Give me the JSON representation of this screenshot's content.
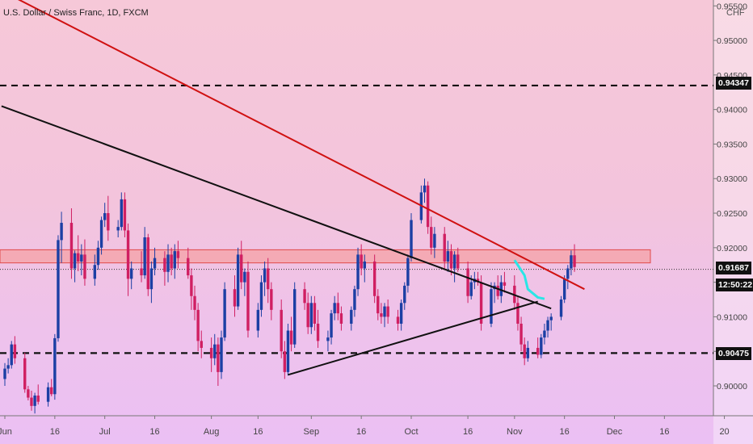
{
  "header": {
    "title": "U.S. Dollar / Swiss Franc, 1D, FXCM",
    "currency": "CHF"
  },
  "axis_tags": {
    "level_high": "0.94347",
    "last_price": "0.91687",
    "countdown": "12:50:22",
    "level_low": "0.90475"
  },
  "colors": {
    "up": "#1c3fa4",
    "down": "#d01f62",
    "resistance": "#d01111",
    "support": "#111111",
    "zone_fill": "#f4a2a6",
    "zone_border": "#e04a4a",
    "projection": "#29e6e6"
  },
  "chart_data": {
    "type": "candlestick",
    "title": "U.S. Dollar / Swiss Franc, 1D, FXCM",
    "y_axis": {
      "ylim": [
        0.8965,
        0.9555
      ],
      "ticks": [
        0.955,
        0.95,
        0.945,
        0.94,
        0.935,
        0.93,
        0.925,
        0.92,
        0.915,
        0.91,
        0.905,
        0.9
      ],
      "tick_labels": [
        "0.95500",
        "0.95000",
        "0.94500",
        "0.94000",
        "0.93500",
        "0.93000",
        "0.92500",
        "0.92000",
        "0.91500",
        "0.91000",
        "0.90500",
        "0.90000"
      ]
    },
    "x_axis": {
      "labels": [
        {
          "text": "Jun",
          "date": "2021-06-01"
        },
        {
          "text": "16",
          "date": "2021-06-16"
        },
        {
          "text": "Jul",
          "date": "2021-07-01"
        },
        {
          "text": "16",
          "date": "2021-07-16"
        },
        {
          "text": "Aug",
          "date": "2021-08-02"
        },
        {
          "text": "16",
          "date": "2021-08-16"
        },
        {
          "text": "Sep",
          "date": "2021-09-01"
        },
        {
          "text": "16",
          "date": "2021-09-16"
        },
        {
          "text": "Oct",
          "date": "2021-10-01"
        },
        {
          "text": "16",
          "date": "2021-10-18"
        },
        {
          "text": "Nov",
          "date": "2021-11-01"
        },
        {
          "text": "16",
          "date": "2021-11-16"
        },
        {
          "text": "Dec",
          "date": "2021-12-01"
        },
        {
          "text": "16",
          "date": "2021-12-16"
        },
        {
          "text": "20",
          "date": "2022-01-03"
        }
      ]
    },
    "horizontal_levels": [
      0.94347,
      0.90475
    ],
    "last_price": 0.91687,
    "resistance_zone": [
      0.9178,
      0.9197
    ],
    "trendlines": [
      {
        "name": "resistance",
        "points": [
          [
            "2021-06-04",
            0.9562
          ],
          [
            "2021-11-22",
            0.914
          ]
        ]
      },
      {
        "name": "support-1",
        "points": [
          [
            "2021-05-31",
            0.9405
          ],
          [
            "2021-11-12",
            0.9112
          ]
        ]
      },
      {
        "name": "support-2",
        "points": [
          [
            "2021-08-25",
            0.9016
          ],
          [
            "2021-11-08",
            0.9122
          ]
        ]
      }
    ],
    "projection": [
      [
        "2021-11-01",
        0.9182
      ],
      [
        "2021-11-04",
        0.916
      ],
      [
        "2021-11-05",
        0.914
      ],
      [
        "2021-11-08",
        0.9128
      ],
      [
        "2021-11-10",
        0.9126
      ]
    ],
    "candles": [
      [
        "2021-06-01",
        0.901,
        0.9033,
        0.9,
        0.9025
      ],
      [
        "2021-06-02",
        0.9025,
        0.904,
        0.9018,
        0.903
      ],
      [
        "2021-06-03",
        0.903,
        0.9065,
        0.9025,
        0.906
      ],
      [
        "2021-06-04",
        0.906,
        0.9072,
        0.9032,
        0.904
      ],
      [
        "2021-06-07",
        0.904,
        0.9048,
        0.899,
        0.8995
      ],
      [
        "2021-06-08",
        0.8995,
        0.9,
        0.8979,
        0.8983
      ],
      [
        "2021-06-09",
        0.8983,
        0.8993,
        0.8964,
        0.8971
      ],
      [
        "2021-06-10",
        0.8971,
        0.899,
        0.896,
        0.8986
      ],
      [
        "2021-06-11",
        0.8986,
        0.9002,
        0.8973,
        0.8977
      ],
      [
        "2021-06-14",
        0.8977,
        0.9005,
        0.897,
        0.8998
      ],
      [
        "2021-06-15",
        0.8998,
        0.901,
        0.8985,
        0.8988
      ],
      [
        "2021-06-16",
        0.8988,
        0.9075,
        0.898,
        0.9069
      ],
      [
        "2021-06-17",
        0.9069,
        0.9218,
        0.9064,
        0.9211
      ],
      [
        "2021-06-18",
        0.9211,
        0.9252,
        0.9178,
        0.9236
      ],
      [
        "2021-06-21",
        0.9236,
        0.9257,
        0.9155,
        0.917
      ],
      [
        "2021-06-22",
        0.917,
        0.9196,
        0.915,
        0.9192
      ],
      [
        "2021-06-23",
        0.9192,
        0.9218,
        0.9166,
        0.918
      ],
      [
        "2021-06-24",
        0.918,
        0.9205,
        0.916,
        0.919
      ],
      [
        "2021-06-25",
        0.919,
        0.9212,
        0.9145,
        0.9155
      ],
      [
        "2021-06-28",
        0.9155,
        0.919,
        0.9145,
        0.9175
      ],
      [
        "2021-06-29",
        0.9175,
        0.921,
        0.9168,
        0.92
      ],
      [
        "2021-06-30",
        0.92,
        0.9245,
        0.919,
        0.924
      ],
      [
        "2021-07-01",
        0.924,
        0.9265,
        0.923,
        0.925
      ],
      [
        "2021-07-02",
        0.925,
        0.9275,
        0.921,
        0.9225
      ],
      [
        "2021-07-05",
        0.9225,
        0.924,
        0.9215,
        0.923
      ],
      [
        "2021-07-06",
        0.923,
        0.928,
        0.9225,
        0.927
      ],
      [
        "2021-07-07",
        0.927,
        0.928,
        0.9215,
        0.9225
      ],
      [
        "2021-07-08",
        0.9225,
        0.9235,
        0.913,
        0.9155
      ],
      [
        "2021-07-09",
        0.9155,
        0.918,
        0.914,
        0.917
      ],
      [
        "2021-07-12",
        0.917,
        0.9195,
        0.915,
        0.916
      ],
      [
        "2021-07-13",
        0.916,
        0.923,
        0.9155,
        0.9215
      ],
      [
        "2021-07-14",
        0.9215,
        0.922,
        0.913,
        0.914
      ],
      [
        "2021-07-15",
        0.914,
        0.918,
        0.912,
        0.917
      ],
      [
        "2021-07-16",
        0.917,
        0.92,
        0.916,
        0.9185
      ],
      [
        "2021-07-19",
        0.9185,
        0.9195,
        0.9145,
        0.9165
      ],
      [
        "2021-07-20",
        0.9165,
        0.9205,
        0.915,
        0.919
      ],
      [
        "2021-07-21",
        0.919,
        0.92,
        0.916,
        0.917
      ],
      [
        "2021-07-22",
        0.917,
        0.9205,
        0.9155,
        0.9195
      ],
      [
        "2021-07-23",
        0.9195,
        0.921,
        0.917,
        0.9185
      ],
      [
        "2021-07-26",
        0.9185,
        0.92,
        0.9155,
        0.916
      ],
      [
        "2021-07-27",
        0.916,
        0.917,
        0.911,
        0.913
      ],
      [
        "2021-07-28",
        0.913,
        0.9145,
        0.9095,
        0.911
      ],
      [
        "2021-07-29",
        0.911,
        0.912,
        0.905,
        0.9065
      ],
      [
        "2021-07-30",
        0.9065,
        0.908,
        0.904,
        0.9055
      ],
      [
        "2021-08-02",
        0.9055,
        0.907,
        0.902,
        0.904
      ],
      [
        "2021-08-03",
        0.904,
        0.9075,
        0.903,
        0.906
      ],
      [
        "2021-08-04",
        0.906,
        0.907,
        0.9,
        0.902
      ],
      [
        "2021-08-05",
        0.902,
        0.908,
        0.901,
        0.907
      ],
      [
        "2021-08-06",
        0.907,
        0.915,
        0.9065,
        0.914
      ],
      [
        "2021-08-09",
        0.914,
        0.916,
        0.91,
        0.9115
      ],
      [
        "2021-08-10",
        0.9115,
        0.92,
        0.911,
        0.919
      ],
      [
        "2021-08-11",
        0.919,
        0.921,
        0.914,
        0.915
      ],
      [
        "2021-08-12",
        0.915,
        0.917,
        0.913,
        0.9165
      ],
      [
        "2021-08-13",
        0.9165,
        0.918,
        0.907,
        0.908
      ],
      [
        "2021-08-16",
        0.908,
        0.912,
        0.907,
        0.911
      ],
      [
        "2021-08-17",
        0.911,
        0.916,
        0.91,
        0.915
      ],
      [
        "2021-08-18",
        0.915,
        0.918,
        0.913,
        0.917
      ],
      [
        "2021-08-19",
        0.917,
        0.9185,
        0.912,
        0.914
      ],
      [
        "2021-08-20",
        0.914,
        0.915,
        0.9095,
        0.911
      ],
      [
        "2021-08-23",
        0.911,
        0.9125,
        0.904,
        0.905
      ],
      [
        "2021-08-24",
        0.905,
        0.9065,
        0.901,
        0.902
      ],
      [
        "2021-08-25",
        0.902,
        0.909,
        0.9015,
        0.908
      ],
      [
        "2021-08-26",
        0.908,
        0.91,
        0.905,
        0.906
      ],
      [
        "2021-08-27",
        0.906,
        0.915,
        0.9055,
        0.914
      ],
      [
        "2021-08-30",
        0.914,
        0.915,
        0.911,
        0.912
      ],
      [
        "2021-08-31",
        0.912,
        0.9135,
        0.9075,
        0.9085
      ],
      [
        "2021-09-01",
        0.9085,
        0.913,
        0.9075,
        0.912
      ],
      [
        "2021-09-02",
        0.912,
        0.913,
        0.908,
        0.909
      ],
      [
        "2021-09-03",
        0.909,
        0.911,
        0.9055,
        0.9065
      ],
      [
        "2021-09-06",
        0.9065,
        0.908,
        0.905,
        0.907
      ],
      [
        "2021-09-07",
        0.907,
        0.911,
        0.906,
        0.9105
      ],
      [
        "2021-09-08",
        0.9105,
        0.913,
        0.9095,
        0.912
      ],
      [
        "2021-09-09",
        0.912,
        0.9135,
        0.9095,
        0.9105
      ],
      [
        "2021-09-10",
        0.9105,
        0.9115,
        0.908,
        0.909
      ],
      [
        "2021-09-13",
        0.909,
        0.9115,
        0.908,
        0.911
      ],
      [
        "2021-09-14",
        0.911,
        0.9145,
        0.91,
        0.914
      ],
      [
        "2021-09-15",
        0.914,
        0.92,
        0.913,
        0.919
      ],
      [
        "2021-09-16",
        0.919,
        0.9205,
        0.916,
        0.917
      ],
      [
        "2021-09-17",
        0.917,
        0.919,
        0.915,
        0.918
      ],
      [
        "2021-09-20",
        0.918,
        0.919,
        0.912,
        0.913
      ],
      [
        "2021-09-21",
        0.913,
        0.914,
        0.9095,
        0.9105
      ],
      [
        "2021-09-22",
        0.9105,
        0.912,
        0.909,
        0.91
      ],
      [
        "2021-09-23",
        0.91,
        0.912,
        0.9085,
        0.9115
      ],
      [
        "2021-09-24",
        0.9115,
        0.9125,
        0.909,
        0.91
      ],
      [
        "2021-09-27",
        0.91,
        0.911,
        0.908,
        0.909
      ],
      [
        "2021-09-28",
        0.909,
        0.9125,
        0.908,
        0.912
      ],
      [
        "2021-09-29",
        0.912,
        0.915,
        0.911,
        0.9145
      ],
      [
        "2021-09-30",
        0.9145,
        0.919,
        0.9135,
        0.9185
      ],
      [
        "2021-10-01",
        0.9185,
        0.925,
        0.918,
        0.924
      ],
      [
        "2021-10-04",
        0.924,
        0.929,
        0.9235,
        0.928
      ],
      [
        "2021-10-05",
        0.928,
        0.93,
        0.9265,
        0.929
      ],
      [
        "2021-10-06",
        0.929,
        0.9296,
        0.922,
        0.923
      ],
      [
        "2021-10-07",
        0.923,
        0.9245,
        0.919,
        0.92
      ],
      [
        "2021-10-08",
        0.92,
        0.923,
        0.9185,
        0.922
      ],
      [
        "2021-10-11",
        0.922,
        0.923,
        0.917,
        0.918
      ],
      [
        "2021-10-12",
        0.918,
        0.921,
        0.9165,
        0.9195
      ],
      [
        "2021-10-13",
        0.9195,
        0.9205,
        0.916,
        0.917
      ],
      [
        "2021-10-14",
        0.917,
        0.9195,
        0.915,
        0.919
      ],
      [
        "2021-10-15",
        0.919,
        0.92,
        0.9165,
        0.917
      ],
      [
        "2021-10-18",
        0.917,
        0.918,
        0.912,
        0.913
      ],
      [
        "2021-10-19",
        0.913,
        0.916,
        0.9125,
        0.915
      ],
      [
        "2021-10-20",
        0.915,
        0.9165,
        0.914,
        0.9155
      ],
      [
        "2021-10-21",
        0.9155,
        0.9165,
        0.9145,
        0.915
      ],
      [
        "2021-10-22",
        0.915,
        0.916,
        0.908,
        0.909
      ],
      [
        "2021-10-25",
        0.909,
        0.915,
        0.9085,
        0.914
      ],
      [
        "2021-10-26",
        0.914,
        0.915,
        0.912,
        0.9145
      ],
      [
        "2021-10-27",
        0.9145,
        0.916,
        0.9125,
        0.913
      ],
      [
        "2021-10-28",
        0.913,
        0.916,
        0.912,
        0.915
      ],
      [
        "2021-10-29",
        0.915,
        0.9165,
        0.9135,
        0.9145
      ],
      [
        "2021-11-01",
        0.9145,
        0.916,
        0.911,
        0.912
      ],
      [
        "2021-11-02",
        0.912,
        0.913,
        0.908,
        0.909
      ],
      [
        "2021-11-03",
        0.909,
        0.91,
        0.905,
        0.906
      ],
      [
        "2021-11-04",
        0.906,
        0.907,
        0.903,
        0.904
      ],
      [
        "2021-11-05",
        0.904,
        0.9065,
        0.9035,
        0.9055
      ],
      [
        "2021-11-08",
        0.9055,
        0.907,
        0.904,
        0.9045
      ],
      [
        "2021-11-09",
        0.9045,
        0.9075,
        0.904,
        0.907
      ],
      [
        "2021-11-10",
        0.907,
        0.909,
        0.906,
        0.908
      ],
      [
        "2021-11-11",
        0.908,
        0.91,
        0.907,
        0.9095
      ],
      [
        "2021-11-12",
        0.9095,
        0.9105,
        0.908,
        0.91
      ],
      [
        "2021-11-15",
        0.91,
        0.913,
        0.9095,
        0.9125
      ],
      [
        "2021-11-16",
        0.9125,
        0.916,
        0.912,
        0.9155
      ],
      [
        "2021-11-17",
        0.9155,
        0.9175,
        0.914,
        0.917
      ],
      [
        "2021-11-18",
        0.917,
        0.9196,
        0.916,
        0.9189
      ],
      [
        "2021-11-19",
        0.9189,
        0.9205,
        0.9165,
        0.9172
      ]
    ]
  }
}
